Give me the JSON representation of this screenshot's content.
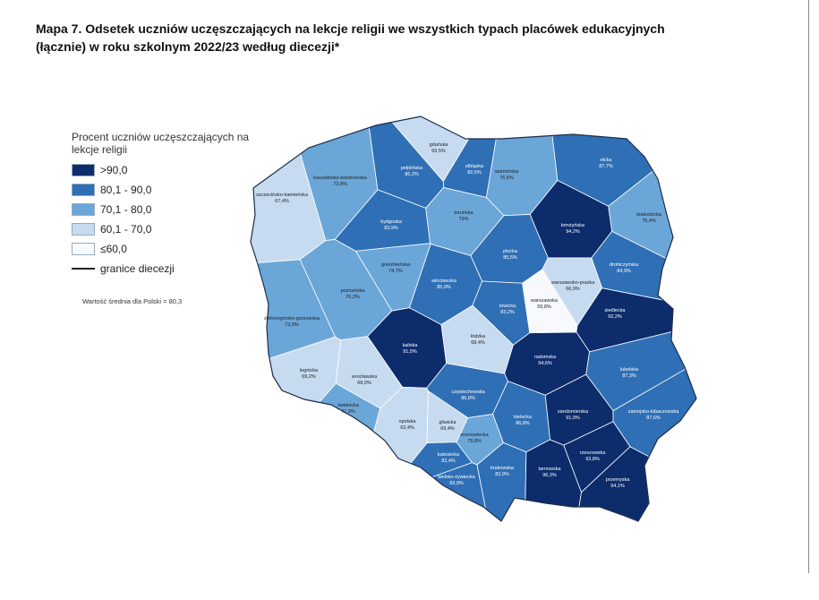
{
  "header": {
    "title": "Mapa 7. Odsetek uczniów uczęszczających na lekcje religii we wszystkich typach placówek edukacyjnych (łącznie) w roku szkolnym 2022/23 według diecezji*"
  },
  "legend": {
    "title": "Procent uczniów uczęszczających na lekcje religii",
    "items": [
      {
        "label": ">90,0",
        "color": "#0d2c6c"
      },
      {
        "label": "80,1 - 90,0",
        "color": "#2f6fb5"
      },
      {
        "label": "70,1 - 80,0",
        "color": "#6ba6d8"
      },
      {
        "label": "60,1 - 70,0",
        "color": "#c7dbf0"
      },
      {
        "label": "≤60,0",
        "color": "#f7f9fc"
      }
    ],
    "border_label": "granice diecezji"
  },
  "note": "Wartość średnia dla Polski = 80,3",
  "regions": [
    {
      "name": "szczecińsko-kamieńska",
      "value": "67,4%",
      "color": "#c7dbf0"
    },
    {
      "name": "koszalińsko-kołobrzeska",
      "value": "73,8%",
      "color": "#6ba6d8"
    },
    {
      "name": "pelplińska",
      "value": "86,2%",
      "color": "#2f6fb5"
    },
    {
      "name": "gdańska",
      "value": "69,5%",
      "color": "#c7dbf0"
    },
    {
      "name": "elbląska",
      "value": "82,5%",
      "color": "#2f6fb5"
    },
    {
      "name": "warmińska",
      "value": "76,5%",
      "color": "#6ba6d8"
    },
    {
      "name": "ełcka",
      "value": "87,7%",
      "color": "#2f6fb5"
    },
    {
      "name": "łomżyńska",
      "value": "94,2%",
      "color": "#0d2c6c"
    },
    {
      "name": "białostocka",
      "value": "75,4%",
      "color": "#6ba6d8"
    },
    {
      "name": "drohiczyńska",
      "value": "84,9%",
      "color": "#2f6fb5"
    },
    {
      "name": "bydgoska",
      "value": "83,9%",
      "color": "#2f6fb5"
    },
    {
      "name": "toruńska",
      "value": "79%",
      "color": "#6ba6d8"
    },
    {
      "name": "płocka",
      "value": "85,5%",
      "color": "#2f6fb5"
    },
    {
      "name": "gnieźnieńska",
      "value": "74,7%",
      "color": "#6ba6d8"
    },
    {
      "name": "włocławska",
      "value": "85,9%",
      "color": "#2f6fb5"
    },
    {
      "name": "warszawsko-praska",
      "value": "66,9%",
      "color": "#c7dbf0"
    },
    {
      "name": "warszawska",
      "value": "59,8%",
      "color": "#f7f9fc"
    },
    {
      "name": "siedlecka",
      "value": "92,2%",
      "color": "#0d2c6c"
    },
    {
      "name": "poznańska",
      "value": "76,2%",
      "color": "#6ba6d8"
    },
    {
      "name": "łowicka",
      "value": "83,2%",
      "color": "#2f6fb5"
    },
    {
      "name": "zielonogórsko-gorzowska",
      "value": "73,9%",
      "color": "#6ba6d8"
    },
    {
      "name": "kaliska",
      "value": "91,5%",
      "color": "#0d2c6c"
    },
    {
      "name": "łódzka",
      "value": "68,4%",
      "color": "#c7dbf0"
    },
    {
      "name": "radomska",
      "value": "94,6%",
      "color": "#0d2c6c"
    },
    {
      "name": "lubelska",
      "value": "87,3%",
      "color": "#2f6fb5"
    },
    {
      "name": "legnicka",
      "value": "69,2%",
      "color": "#c7dbf0"
    },
    {
      "name": "wrocławska",
      "value": "68,0%",
      "color": "#c7dbf0"
    },
    {
      "name": "świdnicka",
      "value": "77,9%",
      "color": "#6ba6d8"
    },
    {
      "name": "częstochowska",
      "value": "86,8%",
      "color": "#2f6fb5"
    },
    {
      "name": "kielecka",
      "value": "86,8%",
      "color": "#2f6fb5"
    },
    {
      "name": "sandomierska",
      "value": "91,9%",
      "color": "#0d2c6c"
    },
    {
      "name": "zamojsko-lubaczowska",
      "value": "87,6%",
      "color": "#2f6fb5"
    },
    {
      "name": "opolska",
      "value": "63,4%",
      "color": "#c7dbf0"
    },
    {
      "name": "gliwicka",
      "value": "69,4%",
      "color": "#c7dbf0"
    },
    {
      "name": "sosnowiecka",
      "value": "79,8%",
      "color": "#6ba6d8"
    },
    {
      "name": "katowicka",
      "value": "82,4%",
      "color": "#2f6fb5"
    },
    {
      "name": "bielsko-żywiecka",
      "value": "83,9%",
      "color": "#2f6fb5"
    },
    {
      "name": "krakowska",
      "value": "82,9%",
      "color": "#2f6fb5"
    },
    {
      "name": "tarnowska",
      "value": "96,3%",
      "color": "#0d2c6c"
    },
    {
      "name": "rzeszowska",
      "value": "93,8%",
      "color": "#0d2c6c"
    },
    {
      "name": "przemyska",
      "value": "94,1%",
      "color": "#0d2c6c"
    }
  ]
}
